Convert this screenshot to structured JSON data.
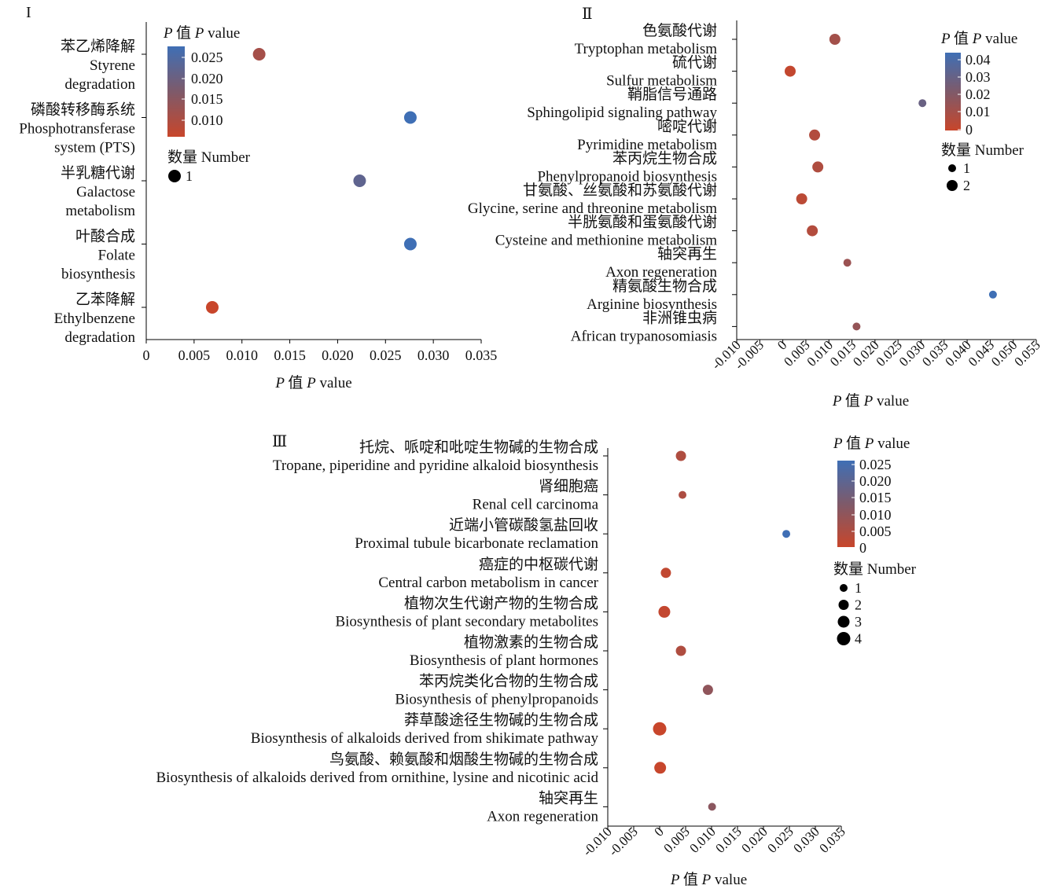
{
  "chart_data": [
    {
      "panel": "I",
      "type": "scatter",
      "xlabel_cn": "P 值",
      "xlabel_en": "P value",
      "xlim": [
        0,
        0.035
      ],
      "xticks": [
        "0",
        "0.005",
        "0.010",
        "0.015",
        "0.020",
        "0.025",
        "0.030",
        "0.035"
      ],
      "categories": [
        {
          "cn": "苯乙烯降解",
          "en": [
            "Styrene",
            "degradation"
          ]
        },
        {
          "cn": "磷酸转移酶系统",
          "en": [
            "Phosphotransferase",
            "system (PTS)"
          ]
        },
        {
          "cn": "半乳糖代谢",
          "en": [
            "Galactose",
            "metabolism"
          ]
        },
        {
          "cn": "叶酸合成",
          "en": [
            "Folate",
            "biosynthesis"
          ]
        },
        {
          "cn": "乙苯降解",
          "en": [
            "Ethylbenzene",
            "degradation"
          ]
        }
      ],
      "points": [
        {
          "x": 0.0118,
          "p": 0.0118,
          "n": 1
        },
        {
          "x": 0.0276,
          "p": 0.0276,
          "n": 1
        },
        {
          "x": 0.0223,
          "p": 0.0223,
          "n": 1
        },
        {
          "x": 0.0276,
          "p": 0.0276,
          "n": 1
        },
        {
          "x": 0.0069,
          "p": 0.0069,
          "n": 1
        }
      ],
      "color_legend": {
        "title_cn": "P 值",
        "title_en": "P value",
        "ticks": [
          "0.025",
          "0.020",
          "0.015",
          "0.010"
        ],
        "min": 0.0069,
        "max": 0.0276
      },
      "size_legend": {
        "title": "数量 Number",
        "values": [
          "1"
        ]
      }
    },
    {
      "panel": "Ⅱ",
      "type": "scatter",
      "xlabel_cn": "P 值",
      "xlabel_en": "P value",
      "xlim": [
        -0.01,
        0.055
      ],
      "xticks": [
        "-0.010",
        "-0.005",
        "0",
        "0.005",
        "0.010",
        "0.015",
        "0.020",
        "0.025",
        "0.030",
        "0.035",
        "0.040",
        "0.045",
        "0.050",
        "0.055"
      ],
      "categories": [
        {
          "cn": "色氨酸代谢",
          "en": [
            "Tryptophan metabolism"
          ]
        },
        {
          "cn": "硫代谢",
          "en": [
            "Sulfur metabolism"
          ]
        },
        {
          "cn": "鞘脂信号通路",
          "en": [
            "Sphingolipid signaling pathway"
          ]
        },
        {
          "cn": "嘧啶代谢",
          "en": [
            "Pyrimidine metabolism"
          ]
        },
        {
          "cn": "苯丙烷生物合成",
          "en": [
            "Phenylpropanoid biosynthesis"
          ]
        },
        {
          "cn": "甘氨酸、丝氨酸和苏氨酸代谢",
          "en": [
            "Glycine, serine and threonine metabolism"
          ]
        },
        {
          "cn": "半胱氨酸和蛋氨酸代谢",
          "en": [
            "Cysteine and methionine metabolism"
          ]
        },
        {
          "cn": "轴突再生",
          "en": [
            "Axon regeneration"
          ]
        },
        {
          "cn": "精氨酸生物合成",
          "en": [
            "Arginine biosynthesis"
          ]
        },
        {
          "cn": "非洲锥虫病",
          "en": [
            "African trypanosomiasis"
          ]
        }
      ],
      "points": [
        {
          "x": 0.0113,
          "p": 0.0113,
          "n": 2
        },
        {
          "x": 0.0016,
          "p": 0.0016,
          "n": 2
        },
        {
          "x": 0.0303,
          "p": 0.0303,
          "n": 1
        },
        {
          "x": 0.0069,
          "p": 0.0069,
          "n": 2
        },
        {
          "x": 0.0076,
          "p": 0.0076,
          "n": 2
        },
        {
          "x": 0.0041,
          "p": 0.0041,
          "n": 2
        },
        {
          "x": 0.0064,
          "p": 0.0064,
          "n": 2
        },
        {
          "x": 0.014,
          "p": 0.014,
          "n": 1
        },
        {
          "x": 0.0456,
          "p": 0.0456,
          "n": 1
        },
        {
          "x": 0.016,
          "p": 0.016,
          "n": 1
        }
      ],
      "color_legend": {
        "title_cn": "P 值",
        "title_en": "P value",
        "ticks": [
          "0.04",
          "0.03",
          "0.02",
          "0.01",
          "0"
        ],
        "min": 0,
        "max": 0.0456
      },
      "size_legend": {
        "title": "数量 Number",
        "values": [
          "1",
          "2"
        ]
      }
    },
    {
      "panel": "Ⅲ",
      "type": "scatter",
      "xlabel_cn": "P 值",
      "xlabel_en": "P value",
      "xlim": [
        -0.01,
        0.035
      ],
      "xticks": [
        "-0.010",
        "-0.005",
        "0",
        "0.005",
        "0.010",
        "0.015",
        "0.020",
        "0.025",
        "0.030",
        "0.035"
      ],
      "categories": [
        {
          "cn": "托烷、哌啶和吡啶生物碱的生物合成",
          "en": [
            "Tropane, piperidine and pyridine alkaloid biosynthesis"
          ]
        },
        {
          "cn": "肾细胞癌",
          "en": [
            "Renal cell carcinoma"
          ]
        },
        {
          "cn": "近端小管碳酸氢盐回收",
          "en": [
            "Proximal tubule bicarbonate reclamation"
          ]
        },
        {
          "cn": "癌症的中枢碳代谢",
          "en": [
            "Central carbon metabolism in cancer"
          ]
        },
        {
          "cn": "植物次生代谢产物的生物合成",
          "en": [
            "Biosynthesis of plant secondary metabolites"
          ]
        },
        {
          "cn": "植物激素的生物合成",
          "en": [
            "Biosynthesis of plant hormones"
          ]
        },
        {
          "cn": "苯丙烷类化合物的生物合成",
          "en": [
            "Biosynthesis of phenylpropanoids"
          ]
        },
        {
          "cn": "莽草酸途径生物碱的生物合成",
          "en": [
            "Biosynthesis of alkaloids derived from shikimate pathway"
          ]
        },
        {
          "cn": "鸟氨酸、赖氨酸和烟酸生物碱的生物合成",
          "en": [
            "Biosynthesis of alkaloids derived from ornithine, lysine and nicotinic acid"
          ]
        },
        {
          "cn": "轴突再生",
          "en": [
            "Axon regeneration"
          ]
        }
      ],
      "points": [
        {
          "x": 0.0041,
          "p": 0.0041,
          "n": 2
        },
        {
          "x": 0.0044,
          "p": 0.0044,
          "n": 1
        },
        {
          "x": 0.0244,
          "p": 0.0244,
          "n": 1
        },
        {
          "x": 0.0012,
          "p": 0.0012,
          "n": 2
        },
        {
          "x": 0.0009,
          "p": 0.0009,
          "n": 3
        },
        {
          "x": 0.0041,
          "p": 0.0041,
          "n": 2
        },
        {
          "x": 0.0093,
          "p": 0.0093,
          "n": 2
        },
        {
          "x": 0.0,
          "p": 0.0,
          "n": 4
        },
        {
          "x": 0.0001,
          "p": 0.0001,
          "n": 3
        },
        {
          "x": 0.0101,
          "p": 0.0101,
          "n": 1
        }
      ],
      "color_legend": {
        "title_cn": "P 值",
        "title_en": "P value",
        "ticks": [
          "0.025",
          "0.020",
          "0.015",
          "0.010",
          "0.005",
          "0"
        ],
        "min": 0,
        "max": 0.0244
      },
      "size_legend": {
        "title": "数量 Number",
        "values": [
          "1",
          "2",
          "3",
          "4"
        ]
      }
    }
  ],
  "colors": {
    "low": "#c8462b",
    "mid": "#7e5a6a",
    "high": "#3f6fb5"
  }
}
